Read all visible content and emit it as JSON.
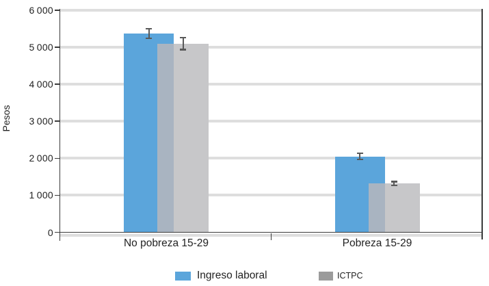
{
  "chart_data": {
    "type": "bar",
    "title": "",
    "xlabel": "",
    "ylabel": "Pesos",
    "categories": [
      "No pobreza 15-29",
      "Pobreza 15-29"
    ],
    "series": [
      {
        "name": "Ingreso laboral",
        "color": "#5BA5DB",
        "legend_color": "#5BA5DB",
        "values": [
          5370,
          2050
        ],
        "errors": [
          130,
          80
        ]
      },
      {
        "name": "ICTPC",
        "color": "#C7C7C9",
        "legend_color": "#9B9B9B",
        "values": [
          5100,
          1320
        ],
        "errors": [
          160,
          50
        ]
      }
    ],
    "overlap_color": "#A9B4C1",
    "error_bar_color": "#595959",
    "ylim": [
      0,
      6000
    ],
    "ytick_step": 1000,
    "ytick_labels": [
      "0",
      "1 000",
      "2 000",
      "3 000",
      "4 000",
      "5 000",
      "6 000"
    ],
    "grid": true,
    "gridline_color": "#DEDEDE",
    "axis_color": "#3A3A3A",
    "legend_position": "bottom"
  }
}
